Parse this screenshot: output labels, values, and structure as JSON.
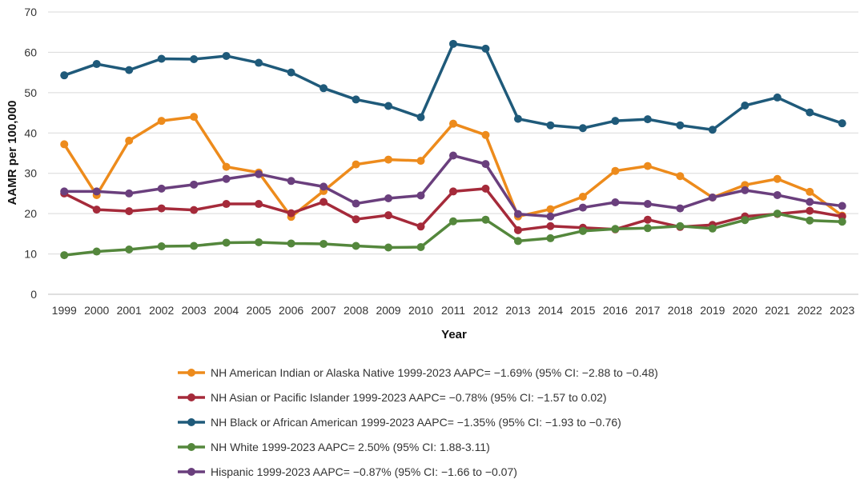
{
  "chart_data": {
    "type": "line",
    "title": "",
    "xlabel": "Year",
    "ylabel": "AAMR per 100,000",
    "ylim": [
      0,
      70
    ],
    "yticks": [
      0,
      10,
      20,
      30,
      40,
      50,
      60,
      70
    ],
    "grid": true,
    "legend_position": "bottom",
    "categories": [
      "1999",
      "2000",
      "2001",
      "2002",
      "2003",
      "2004",
      "2005",
      "2006",
      "2007",
      "2008",
      "2009",
      "2010",
      "2011",
      "2012",
      "2013",
      "2014",
      "2015",
      "2016",
      "2017",
      "2018",
      "2019",
      "2020",
      "2021",
      "2022",
      "2023"
    ],
    "series": [
      {
        "name": "NH American Indian or Alaska Native 1999-2023 AAPC= −1.69% (95% CI: −2.88 to −0.48)",
        "color": "#ED8B1C",
        "values": [
          37.2,
          24.6,
          38.1,
          43.0,
          44.0,
          31.6,
          30.2,
          19.2,
          25.6,
          32.2,
          33.4,
          33.1,
          42.3,
          39.5,
          19.3,
          21.1,
          24.2,
          30.6,
          31.8,
          29.3,
          24.0,
          27.1,
          28.6,
          25.4,
          19.5
        ]
      },
      {
        "name": "NH Asian or Pacific Islander 1999-2023 AAPC= −0.78% (95% CI: −1.57 to 0.02)",
        "color": "#A52A3A",
        "values": [
          25.0,
          21.0,
          20.6,
          21.3,
          20.9,
          22.4,
          22.4,
          20.1,
          22.9,
          18.6,
          19.6,
          16.8,
          25.5,
          26.2,
          15.9,
          16.9,
          16.5,
          16.1,
          18.5,
          16.7,
          17.2,
          19.3,
          19.9,
          20.7,
          19.3
        ]
      },
      {
        "name": "NH Black or African American 1999-2023 AAPC= −1.35% (95% CI: −1.93 to −0.76)",
        "color": "#1F5A7A",
        "values": [
          54.3,
          57.1,
          55.6,
          58.4,
          58.3,
          59.1,
          57.4,
          55.0,
          51.1,
          48.3,
          46.7,
          43.9,
          62.1,
          60.9,
          43.5,
          41.9,
          41.2,
          43.0,
          43.4,
          41.9,
          40.8,
          46.8,
          48.8,
          45.1,
          42.4
        ]
      },
      {
        "name": "NH White 1999-2023 AAPC= 2.50% (95% CI: 1.88-3.11)",
        "color": "#54873C",
        "values": [
          9.7,
          10.6,
          11.1,
          11.9,
          12.0,
          12.8,
          12.9,
          12.6,
          12.5,
          12.0,
          11.6,
          11.7,
          18.1,
          18.5,
          13.2,
          13.9,
          15.7,
          16.2,
          16.4,
          16.9,
          16.3,
          18.4,
          20.0,
          18.3,
          18.0
        ]
      },
      {
        "name": "Hispanic 1999-2023 AAPC= −0.87% (95% CI: −1.66 to −0.07)",
        "color": "#6A3F7D",
        "values": [
          25.5,
          25.5,
          25.0,
          26.2,
          27.2,
          28.6,
          29.8,
          28.1,
          26.7,
          22.5,
          23.8,
          24.5,
          34.4,
          32.3,
          19.9,
          19.3,
          21.5,
          22.8,
          22.4,
          21.3,
          24.0,
          25.8,
          24.6,
          22.9,
          21.9
        ]
      }
    ]
  }
}
